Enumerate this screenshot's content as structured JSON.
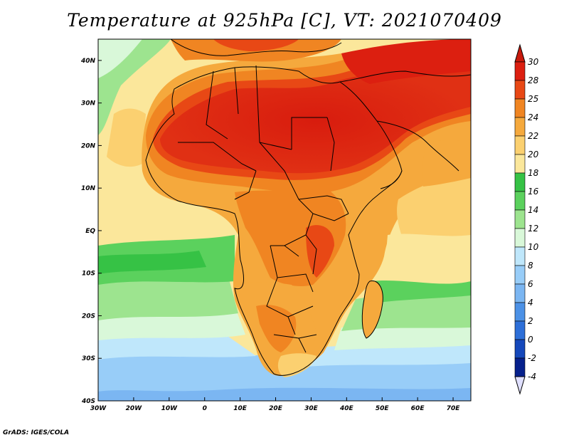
{
  "title": "Temperature at 925hPa [C], VT: 2021070409",
  "credit": "GrADS: IGES/COLA",
  "map": {
    "x_ticks": [
      "30W",
      "20W",
      "10W",
      "0",
      "10E",
      "20E",
      "30E",
      "40E",
      "50E",
      "60E",
      "70E"
    ],
    "y_ticks": [
      "40N",
      "30N",
      "20N",
      "10N",
      "EQ",
      "10S",
      "20S",
      "30S",
      "40S"
    ],
    "lon_range": [
      -30,
      75
    ],
    "lat_range": [
      -40,
      45
    ]
  },
  "colorbar": {
    "levels": [
      "30",
      "28",
      "25",
      "24",
      "22",
      "20",
      "18",
      "16",
      "14",
      "12",
      "10",
      "8",
      "6",
      "4",
      "2",
      "0",
      "-2",
      "-4"
    ],
    "colors": [
      "#dc1f10",
      "#e84815",
      "#f08522",
      "#f5a93d",
      "#fbd070",
      "#fbe79b",
      "#36c245",
      "#5bd15d",
      "#9de48f",
      "#d9f8d9",
      "#bfe7fb",
      "#98cdf8",
      "#7bb6f2",
      "#4c91e6",
      "#2d6fd8",
      "#1548bb",
      "#06208c"
    ],
    "top_arrow_color": "#c81a0c",
    "bottom_arrow_color": "#e0e0ff"
  }
}
